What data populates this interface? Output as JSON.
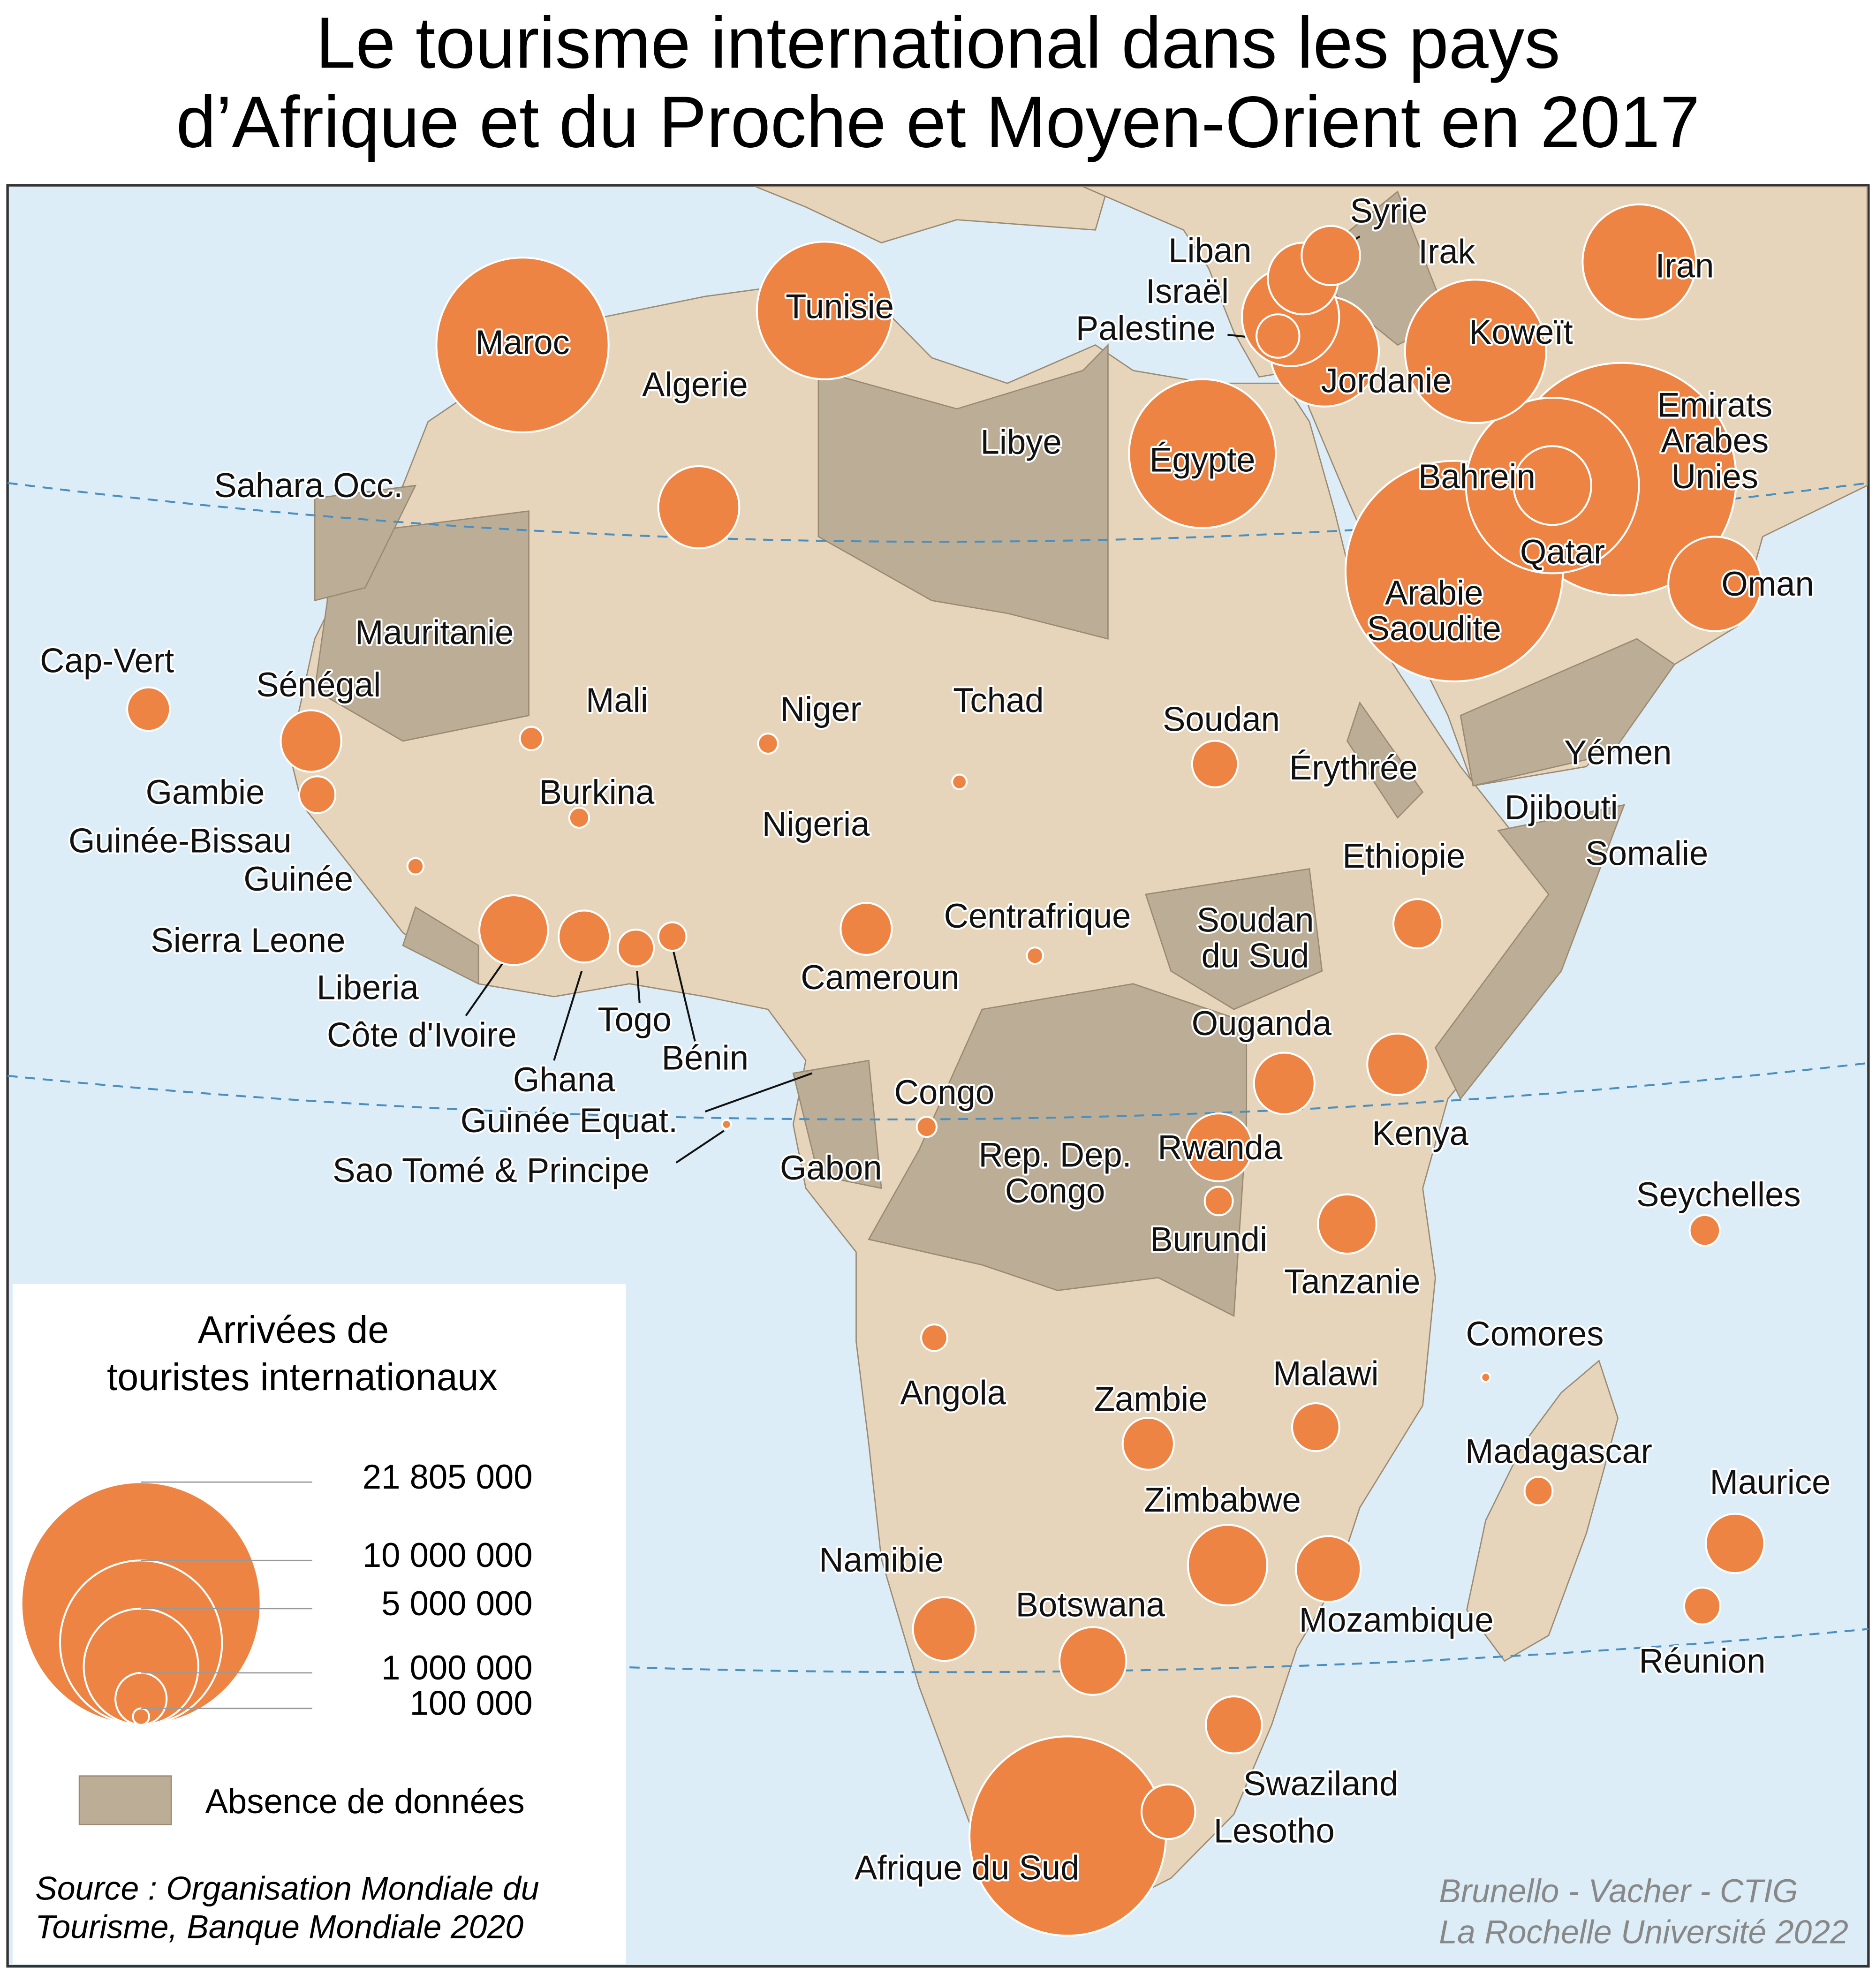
{
  "title": [
    "Le tourisme international dans les pays",
    "d’Afrique et du Proche et Moyen-Orient en 2017"
  ],
  "countries": [
    {
      "name": [
        "Maroc"
      ],
      "arrivals": 11300000
    },
    {
      "name": [
        "Tunisie"
      ],
      "arrivals": 7000000
    },
    {
      "name": [
        "Algerie"
      ],
      "arrivals": 2500000
    },
    {
      "name": [
        "Libye"
      ],
      "arrivals": null
    },
    {
      "name": [
        "Égypte"
      ],
      "arrivals": 8200000
    },
    {
      "name": [
        "Sahara Occ."
      ],
      "arrivals": null
    },
    {
      "name": [
        "Mauritanie"
      ],
      "arrivals": null
    },
    {
      "name": [
        "Mali"
      ],
      "arrivals": 200000
    },
    {
      "name": [
        "Niger"
      ],
      "arrivals": 150000
    },
    {
      "name": [
        "Tchad"
      ],
      "arrivals": 80000
    },
    {
      "name": [
        "Soudan"
      ],
      "arrivals": 800000
    },
    {
      "name": [
        "Érythrée"
      ],
      "arrivals": null
    },
    {
      "name": [
        "Cap-Vert"
      ],
      "arrivals": 700000
    },
    {
      "name": [
        "Sénégal"
      ],
      "arrivals": 1400000
    },
    {
      "name": [
        "Gambie"
      ],
      "arrivals": 500000
    },
    {
      "name": [
        "Guinée-Bissau"
      ],
      "arrivals": null
    },
    {
      "name": [
        "Guinée"
      ],
      "arrivals": 100000
    },
    {
      "name": [
        "Sierra Leone"
      ],
      "arrivals": null
    },
    {
      "name": [
        "Liberia"
      ],
      "arrivals": null
    },
    {
      "name": [
        "Côte d'Ivoire"
      ],
      "arrivals": 1800000
    },
    {
      "name": [
        "Ghana"
      ],
      "arrivals": 1000000
    },
    {
      "name": [
        "Togo"
      ],
      "arrivals": 500000
    },
    {
      "name": [
        "Bénin"
      ],
      "arrivals": 300000
    },
    {
      "name": [
        "Burkina"
      ],
      "arrivals": 150000
    },
    {
      "name": [
        "Nigeria"
      ],
      "arrivals": null
    },
    {
      "name": [
        "Cameroun"
      ],
      "arrivals": 1000000
    },
    {
      "name": [
        "Centrafrique"
      ],
      "arrivals": 100000
    },
    {
      "name": [
        "Guinée Equat."
      ],
      "arrivals": null
    },
    {
      "name": [
        "Sao Tomé & Principe"
      ],
      "arrivals": 30000
    },
    {
      "name": [
        "Gabon"
      ],
      "arrivals": null
    },
    {
      "name": [
        "Congo"
      ],
      "arrivals": 150000
    },
    {
      "name": [
        "Rep. Dep.",
        "Congo"
      ],
      "arrivals": null
    },
    {
      "name": [
        "Soudan",
        "du Sud"
      ],
      "arrivals": null
    },
    {
      "name": [
        "Ethiopie"
      ],
      "arrivals": 900000
    },
    {
      "name": [
        "Djibouti"
      ],
      "arrivals": null
    },
    {
      "name": [
        "Somalie"
      ],
      "arrivals": null
    },
    {
      "name": [
        "Yémen"
      ],
      "arrivals": null
    },
    {
      "name": [
        "Ouganda"
      ],
      "arrivals": 1400000
    },
    {
      "name": [
        "Kenya"
      ],
      "arrivals": 1400000
    },
    {
      "name": [
        "Rwanda"
      ],
      "arrivals": 1700000
    },
    {
      "name": [
        "Burundi"
      ],
      "arrivals": 300000
    },
    {
      "name": [
        "Tanzanie"
      ],
      "arrivals": 1300000
    },
    {
      "name": [
        "Seychelles"
      ],
      "arrivals": 350000
    },
    {
      "name": [
        "Comores"
      ],
      "arrivals": 30000
    },
    {
      "name": [
        "Angola"
      ],
      "arrivals": 260000
    },
    {
      "name": [
        "Zambie"
      ],
      "arrivals": 1000000
    },
    {
      "name": [
        "Malawi"
      ],
      "arrivals": 850000
    },
    {
      "name": [
        "Madagascar"
      ],
      "arrivals": 300000
    },
    {
      "name": [
        "Maurice"
      ],
      "arrivals": 1300000
    },
    {
      "name": [
        "Réunion"
      ],
      "arrivals": 500000
    },
    {
      "name": [
        "Zimbabwe"
      ],
      "arrivals": 2400000
    },
    {
      "name": [
        "Mozambique"
      ],
      "arrivals": 1600000
    },
    {
      "name": [
        "Namibie"
      ],
      "arrivals": 1500000
    },
    {
      "name": [
        "Botswana"
      ],
      "arrivals": 1700000
    },
    {
      "name": [
        "Swaziland"
      ],
      "arrivals": 1200000
    },
    {
      "name": [
        "Lesotho"
      ],
      "arrivals": 1100000
    },
    {
      "name": [
        "Afrique du Sud"
      ],
      "arrivals": 14700000
    },
    {
      "name": [
        "Arabie",
        "Saoudite"
      ],
      "arrivals": 18000000
    },
    {
      "name": [
        "Emirats",
        "Arabes",
        "Unies"
      ],
      "arrivals": 20000000
    },
    {
      "name": [
        "Bahrein"
      ],
      "arrivals": 11400000
    },
    {
      "name": [
        "Qatar"
      ],
      "arrivals": 2300000
    },
    {
      "name": [
        "Oman"
      ],
      "arrivals": 3300000
    },
    {
      "name": [
        "Koweït"
      ],
      "arrivals": 7600000
    },
    {
      "name": [
        "Iran"
      ],
      "arrivals": 4900000
    },
    {
      "name": [
        "Irak"
      ],
      "arrivals": null
    },
    {
      "name": [
        "Syrie"
      ],
      "arrivals": 1300000
    },
    {
      "name": [
        "Liban"
      ],
      "arrivals": 1900000
    },
    {
      "name": [
        "Israël"
      ],
      "arrivals": 3600000
    },
    {
      "name": [
        "Palestine"
      ],
      "arrivals": 700000
    },
    {
      "name": [
        "Jordanie"
      ],
      "arrivals": 4500000
    }
  ],
  "legend": {
    "title": [
      "Arrivées de",
      "touristes internationaux"
    ],
    "sizes": [
      {
        "value": 21805000,
        "label": "21 805 000"
      },
      {
        "value": 10000000,
        "label": "10 000 000"
      },
      {
        "value": 5000000,
        "label": "5 000 000"
      },
      {
        "value": 1000000,
        "label": "1 000 000"
      },
      {
        "value": 100000,
        "label": "100 000"
      }
    ],
    "no_data": "Absence de données"
  },
  "source": [
    "Source : Organisation Mondiale du",
    "Tourisme, Banque Mondiale 2020"
  ],
  "credit": [
    "Brunello - Vacher - CTIG",
    "La Rochelle Université 2022"
  ]
}
